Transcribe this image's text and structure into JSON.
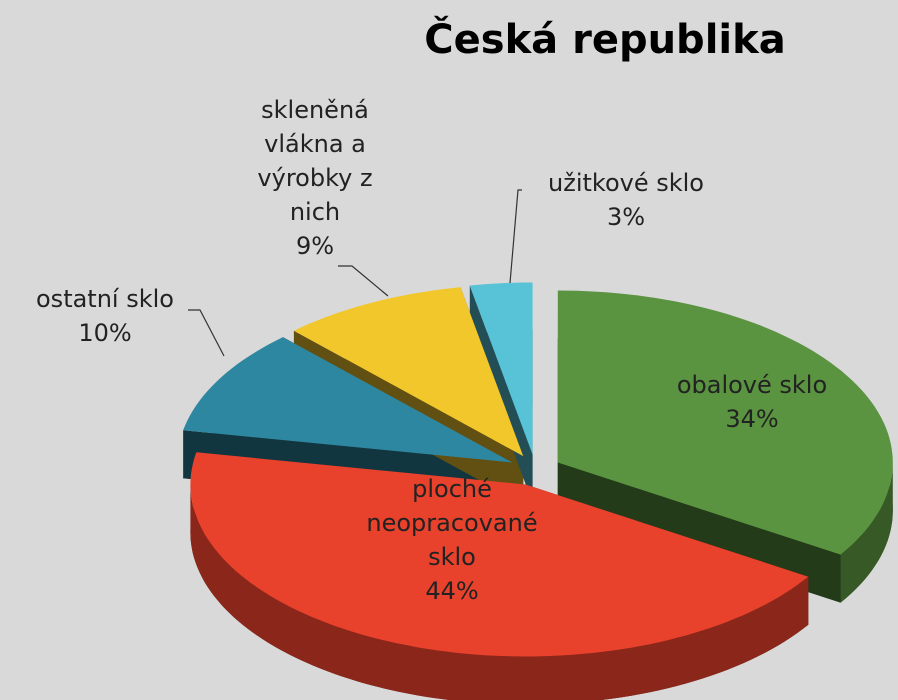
{
  "chart_data": {
    "type": "pie",
    "title": "Česká republika",
    "categories": [
      "obalové sklo",
      "ploché neopracované sklo",
      "ostatní sklo",
      "skleněná vlákna a výrobky z nich",
      "užitkové sklo"
    ],
    "values": [
      34,
      44,
      10,
      9,
      3
    ],
    "value_labels": [
      "34%",
      "44%",
      "10%",
      "9%",
      "3%"
    ],
    "colors": [
      "#5a9440",
      "#e8412c",
      "#2e87a0",
      "#f2c72c",
      "#58c3d6"
    ]
  }
}
